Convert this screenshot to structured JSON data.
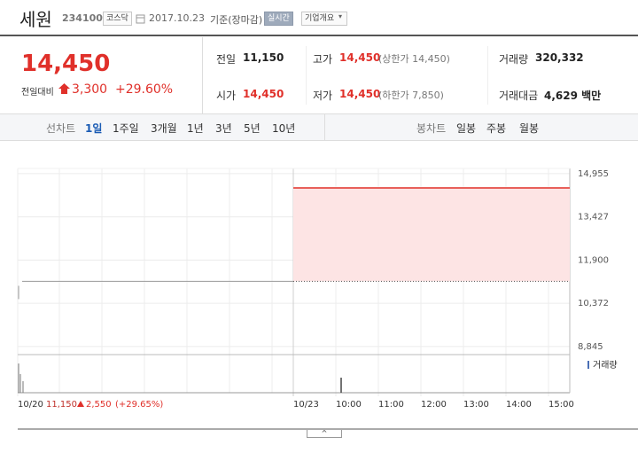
{
  "header": {
    "name": "세원",
    "code": "234100",
    "market": "코스닥",
    "date": "2017.10.23",
    "basis": "기준(장마감)",
    "realtime": "실시간",
    "company_info": "기업개요"
  },
  "summary": {
    "price": "14,450",
    "change_label": "전일대비",
    "change": "3,300",
    "change_rate": "+29.60%",
    "rows": [
      [
        {
          "label": "전일",
          "value": "11,150"
        },
        {
          "label": "고가",
          "value": "14,450",
          "note": "(상한가 14,450)"
        },
        {
          "label": "거래량",
          "value": "320,332"
        }
      ],
      [
        {
          "label": "시가",
          "value": "14,450"
        },
        {
          "label": "저가",
          "value": "14,450",
          "note": "(하한가 7,850)"
        },
        {
          "label": "거래대금",
          "value": "4,629 백만"
        }
      ]
    ]
  },
  "tabs": {
    "line_label": "선차트",
    "line": [
      "1일",
      "1주일",
      "3개월",
      "1년",
      "3년",
      "5년",
      "10년"
    ],
    "candle_label": "봉차트",
    "candle": [
      "일봉",
      "주봉",
      "월봉"
    ]
  },
  "chart_data": {
    "type": "line",
    "ylim": [
      8560,
      15140
    ],
    "yticks": [
      {
        "value": 14955,
        "label": "14,955"
      },
      {
        "value": 13427,
        "label": "13,427"
      },
      {
        "value": 11900,
        "label": "11,900"
      },
      {
        "value": 10372,
        "label": "10,372"
      },
      {
        "value": 8845,
        "label": "8,845"
      }
    ],
    "xticks": [
      "10/20",
      "10/23",
      "10:00",
      "11:00",
      "12:00",
      "13:00",
      "14:00",
      "15:00"
    ],
    "series": [
      {
        "color": "#9a9a9a",
        "values": [
          11150,
          11150
        ]
      },
      {
        "color": "#e8605a",
        "values": [
          14450,
          14450
        ]
      }
    ],
    "base": 11150,
    "fill": "#fde4e4",
    "grid": true,
    "volume_label": "거래량"
  },
  "footer": {
    "price": "11,150",
    "change": "2,550",
    "rate": "(+29.65%)"
  }
}
